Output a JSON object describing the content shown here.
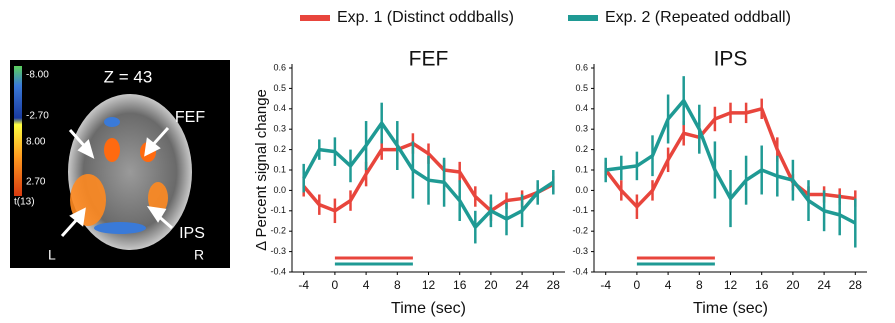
{
  "legend_title_note_free": null,
  "brain_panel": {
    "slice_label": "Z = 43",
    "region_labels": [
      "FEF",
      "IPS"
    ],
    "side_labels": [
      "L",
      "R"
    ],
    "colorbar_labels": [
      "-8.00",
      "-2.70",
      "8.00",
      "2.70"
    ],
    "colorbar_title": "t(13)"
  },
  "y_label": "Δ Percent signal change",
  "chart_data": [
    {
      "type": "line",
      "title": "FEF",
      "x_label": "Time (sec)",
      "x": [
        -4,
        -2,
        0,
        2,
        4,
        6,
        8,
        10,
        12,
        14,
        16,
        18,
        20,
        22,
        24,
        26,
        28
      ],
      "series": [
        {
          "name": "Exp. 1 (Distinct oddballs)",
          "color": "#e8453c",
          "values": [
            0.02,
            -0.07,
            -0.1,
            -0.05,
            0.08,
            0.2,
            0.2,
            0.23,
            0.18,
            0.1,
            0.09,
            -0.03,
            -0.1,
            -0.05,
            -0.04,
            -0.01,
            0.03
          ],
          "errors": [
            0.05,
            0.05,
            0.06,
            0.05,
            0.06,
            0.05,
            0.05,
            0.05,
            0.05,
            0.05,
            0.05,
            0.05,
            0.05,
            0.04,
            0.04,
            0.04,
            0.04
          ]
        },
        {
          "name": "Exp. 2 (Repeated oddball)",
          "color": "#1f9a94",
          "values": [
            0.06,
            0.2,
            0.19,
            0.12,
            0.22,
            0.33,
            0.22,
            0.1,
            0.05,
            0.04,
            -0.05,
            -0.18,
            -0.1,
            -0.14,
            -0.1,
            -0.01,
            0.04
          ],
          "errors": [
            0.07,
            0.05,
            0.07,
            0.08,
            0.12,
            0.1,
            0.12,
            0.14,
            0.12,
            0.12,
            0.1,
            0.08,
            0.08,
            0.08,
            0.08,
            0.06,
            0.06
          ]
        }
      ],
      "stimulus_period": [
        0,
        10
      ],
      "xlim": [
        -5.5,
        29.5
      ],
      "xticks": [
        -4,
        0,
        4,
        8,
        12,
        16,
        20,
        24,
        28
      ],
      "ylim": [
        -0.4,
        0.6
      ],
      "yticks": [
        -0.4,
        -0.3,
        -0.2,
        -0.1,
        {
          "value": 0,
          "label": "0.0"
        },
        0.1,
        0.2,
        0.3,
        0.4,
        0.5,
        0.6
      ]
    },
    {
      "type": "line",
      "title": "IPS",
      "x_label": "Time (sec)",
      "x": [
        -4,
        -2,
        0,
        2,
        4,
        6,
        8,
        10,
        12,
        14,
        16,
        18,
        20,
        22,
        24,
        26,
        28
      ],
      "series": [
        {
          "color": "#e8453c",
          "values": [
            0.1,
            0.0,
            -0.08,
            0.0,
            0.15,
            0.28,
            0.26,
            0.35,
            0.38,
            0.38,
            0.4,
            0.2,
            0.04,
            -0.02,
            -0.02,
            -0.03,
            -0.04
          ],
          "errors": [
            0.04,
            0.05,
            0.06,
            0.05,
            0.06,
            0.06,
            0.07,
            0.06,
            0.05,
            0.05,
            0.05,
            0.06,
            0.04,
            0.04,
            0.04,
            0.04,
            0.04
          ]
        },
        {
          "color": "#1f9a94",
          "values": [
            0.1,
            0.11,
            0.12,
            0.17,
            0.35,
            0.44,
            0.3,
            0.1,
            -0.04,
            0.05,
            0.1,
            0.07,
            0.05,
            -0.05,
            -0.1,
            -0.12,
            -0.16
          ],
          "errors": [
            0.06,
            0.06,
            0.07,
            0.1,
            0.12,
            0.12,
            0.12,
            0.14,
            0.14,
            0.12,
            0.12,
            0.1,
            0.1,
            0.1,
            0.1,
            0.1,
            0.12
          ]
        }
      ],
      "stimulus_period": [
        0,
        10
      ],
      "xlim": [
        -5.5,
        29.5
      ],
      "xticks": [
        -4,
        0,
        4,
        8,
        12,
        16,
        20,
        24,
        28
      ],
      "ylim": [
        -0.4,
        0.6
      ],
      "yticks": [
        -0.4,
        -0.3,
        -0.2,
        -0.1,
        {
          "value": 0,
          "label": "0.0"
        },
        0.1,
        0.2,
        0.3,
        0.4,
        0.5,
        0.6
      ]
    }
  ]
}
